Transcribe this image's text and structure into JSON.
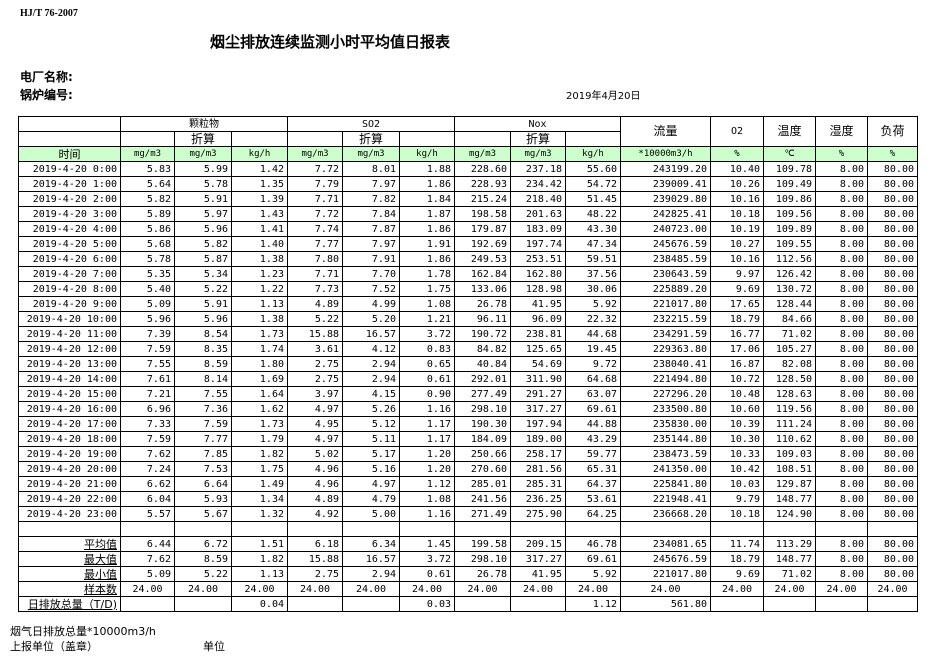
{
  "standard": "HJ/T 76-2007",
  "title": "烟尘排放连续监测小时平均值日报表",
  "plant_name_label": "电厂名称:",
  "boiler_label": "锅炉编号:",
  "date": "2019年4月20日",
  "header": {
    "groups": [
      "颗粒物",
      "SO2",
      "Nox"
    ],
    "converted": "折算",
    "flow": "流量",
    "o2": "O2",
    "temp": "温度",
    "humidity": "湿度",
    "load": "负荷",
    "units": [
      "时间",
      "mg/m3",
      "mg/m3",
      "kg/h",
      "mg/m3",
      "mg/m3",
      "kg/h",
      "mg/m3",
      "mg/m3",
      "kg/h",
      "*10000m3/h",
      "%",
      "℃",
      "%",
      "%"
    ]
  },
  "rows": [
    [
      "2019-4-20 0:00",
      "5.83",
      "5.99",
      "1.42",
      "7.72",
      "8.01",
      "1.88",
      "228.60",
      "237.18",
      "55.60",
      "243199.20",
      "10.40",
      "109.78",
      "8.00",
      "80.00"
    ],
    [
      "2019-4-20 1:00",
      "5.64",
      "5.78",
      "1.35",
      "7.79",
      "7.97",
      "1.86",
      "228.93",
      "234.42",
      "54.72",
      "239009.41",
      "10.26",
      "109.49",
      "8.00",
      "80.00"
    ],
    [
      "2019-4-20 2:00",
      "5.82",
      "5.91",
      "1.39",
      "7.71",
      "7.82",
      "1.84",
      "215.24",
      "218.40",
      "51.45",
      "239029.80",
      "10.16",
      "109.86",
      "8.00",
      "80.00"
    ],
    [
      "2019-4-20 3:00",
      "5.89",
      "5.97",
      "1.43",
      "7.72",
      "7.84",
      "1.87",
      "198.58",
      "201.63",
      "48.22",
      "242825.41",
      "10.18",
      "109.56",
      "8.00",
      "80.00"
    ],
    [
      "2019-4-20 4:00",
      "5.86",
      "5.96",
      "1.41",
      "7.74",
      "7.87",
      "1.86",
      "179.87",
      "183.09",
      "43.30",
      "240723.00",
      "10.19",
      "109.89",
      "8.00",
      "80.00"
    ],
    [
      "2019-4-20 5:00",
      "5.68",
      "5.82",
      "1.40",
      "7.77",
      "7.97",
      "1.91",
      "192.69",
      "197.74",
      "47.34",
      "245676.59",
      "10.27",
      "109.55",
      "8.00",
      "80.00"
    ],
    [
      "2019-4-20 6:00",
      "5.78",
      "5.87",
      "1.38",
      "7.80",
      "7.91",
      "1.86",
      "249.53",
      "253.51",
      "59.51",
      "238485.59",
      "10.16",
      "112.56",
      "8.00",
      "80.00"
    ],
    [
      "2019-4-20 7:00",
      "5.35",
      "5.34",
      "1.23",
      "7.71",
      "7.70",
      "1.78",
      "162.84",
      "162.80",
      "37.56",
      "230643.59",
      "9.97",
      "126.42",
      "8.00",
      "80.00"
    ],
    [
      "2019-4-20 8:00",
      "5.40",
      "5.22",
      "1.22",
      "7.73",
      "7.52",
      "1.75",
      "133.06",
      "128.98",
      "30.06",
      "225889.20",
      "9.69",
      "130.72",
      "8.00",
      "80.00"
    ],
    [
      "2019-4-20 9:00",
      "5.09",
      "5.91",
      "1.13",
      "4.89",
      "4.99",
      "1.08",
      "26.78",
      "41.95",
      "5.92",
      "221017.80",
      "17.65",
      "128.44",
      "8.00",
      "80.00"
    ],
    [
      "2019-4-20 10:00",
      "5.96",
      "5.96",
      "1.38",
      "5.22",
      "5.20",
      "1.21",
      "96.11",
      "96.09",
      "22.32",
      "232215.59",
      "18.79",
      "84.66",
      "8.00",
      "80.00"
    ],
    [
      "2019-4-20 11:00",
      "7.39",
      "8.54",
      "1.73",
      "15.88",
      "16.57",
      "3.72",
      "190.72",
      "238.81",
      "44.68",
      "234291.59",
      "16.77",
      "71.02",
      "8.00",
      "80.00"
    ],
    [
      "2019-4-20 12:00",
      "7.59",
      "8.35",
      "1.74",
      "3.61",
      "4.12",
      "0.83",
      "84.82",
      "125.65",
      "19.45",
      "229363.80",
      "17.06",
      "105.27",
      "8.00",
      "80.00"
    ],
    [
      "2019-4-20 13:00",
      "7.55",
      "8.59",
      "1.80",
      "2.75",
      "2.94",
      "0.65",
      "40.84",
      "54.69",
      "9.72",
      "238040.41",
      "16.87",
      "82.08",
      "8.00",
      "80.00"
    ],
    [
      "2019-4-20 14:00",
      "7.61",
      "8.14",
      "1.69",
      "2.75",
      "2.94",
      "0.61",
      "292.01",
      "311.90",
      "64.68",
      "221494.80",
      "10.72",
      "128.50",
      "8.00",
      "80.00"
    ],
    [
      "2019-4-20 15:00",
      "7.21",
      "7.55",
      "1.64",
      "3.97",
      "4.15",
      "0.90",
      "277.49",
      "291.27",
      "63.07",
      "227296.20",
      "10.48",
      "128.63",
      "8.00",
      "80.00"
    ],
    [
      "2019-4-20 16:00",
      "6.96",
      "7.36",
      "1.62",
      "4.97",
      "5.26",
      "1.16",
      "298.10",
      "317.27",
      "69.61",
      "233500.80",
      "10.60",
      "119.56",
      "8.00",
      "80.00"
    ],
    [
      "2019-4-20 17:00",
      "7.33",
      "7.59",
      "1.73",
      "4.95",
      "5.12",
      "1.17",
      "190.30",
      "197.94",
      "44.88",
      "235830.00",
      "10.39",
      "111.24",
      "8.00",
      "80.00"
    ],
    [
      "2019-4-20 18:00",
      "7.59",
      "7.77",
      "1.79",
      "4.97",
      "5.11",
      "1.17",
      "184.09",
      "189.00",
      "43.29",
      "235144.80",
      "10.30",
      "110.62",
      "8.00",
      "80.00"
    ],
    [
      "2019-4-20 19:00",
      "7.62",
      "7.85",
      "1.82",
      "5.02",
      "5.17",
      "1.20",
      "250.66",
      "258.17",
      "59.77",
      "238473.59",
      "10.33",
      "109.03",
      "8.00",
      "80.00"
    ],
    [
      "2019-4-20 20:00",
      "7.24",
      "7.53",
      "1.75",
      "4.96",
      "5.16",
      "1.20",
      "270.60",
      "281.56",
      "65.31",
      "241350.00",
      "10.42",
      "108.51",
      "8.00",
      "80.00"
    ],
    [
      "2019-4-20 21:00",
      "6.62",
      "6.64",
      "1.49",
      "4.96",
      "4.97",
      "1.12",
      "285.01",
      "285.31",
      "64.37",
      "225841.80",
      "10.03",
      "129.87",
      "8.00",
      "80.00"
    ],
    [
      "2019-4-20 22:00",
      "6.04",
      "5.93",
      "1.34",
      "4.89",
      "4.79",
      "1.08",
      "241.56",
      "236.25",
      "53.61",
      "221948.41",
      "9.79",
      "148.77",
      "8.00",
      "80.00"
    ],
    [
      "2019-4-20 23:00",
      "5.57",
      "5.67",
      "1.32",
      "4.92",
      "5.00",
      "1.16",
      "271.49",
      "275.90",
      "64.25",
      "236668.20",
      "10.18",
      "124.90",
      "8.00",
      "80.00"
    ]
  ],
  "summary": [
    [
      "平均值",
      "6.44",
      "6.72",
      "1.51",
      "6.18",
      "6.34",
      "1.45",
      "199.58",
      "209.15",
      "46.78",
      "234081.65",
      "11.74",
      "113.29",
      "8.00",
      "80.00"
    ],
    [
      "最大值",
      "7.62",
      "8.59",
      "1.82",
      "15.88",
      "16.57",
      "3.72",
      "298.10",
      "317.27",
      "69.61",
      "245676.59",
      "18.79",
      "148.77",
      "8.00",
      "80.00"
    ],
    [
      "最小值",
      "5.09",
      "5.22",
      "1.13",
      "2.75",
      "2.94",
      "0.61",
      "26.78",
      "41.95",
      "5.92",
      "221017.80",
      "9.69",
      "71.02",
      "8.00",
      "80.00"
    ],
    [
      "样本数",
      "24.00",
      "24.00",
      "24.00",
      "24.00",
      "24.00",
      "24.00",
      "24.00",
      "24.00",
      "24.00",
      "24.00",
      "24.00",
      "24.00",
      "24.00",
      "24.00"
    ],
    [
      "日排放总量（T/D)",
      "",
      "",
      "0.04",
      "",
      "",
      "0.03",
      "",
      "",
      "1.12",
      "561.80",
      "",
      "",
      "",
      ""
    ]
  ],
  "footer": {
    "flue_gas_total": "烟气日排放总量*10000m3/h",
    "reporting_unit": "上报单位（盖章）",
    "unit": "单位"
  },
  "colors": {
    "header_green": "#ccffcc"
  }
}
